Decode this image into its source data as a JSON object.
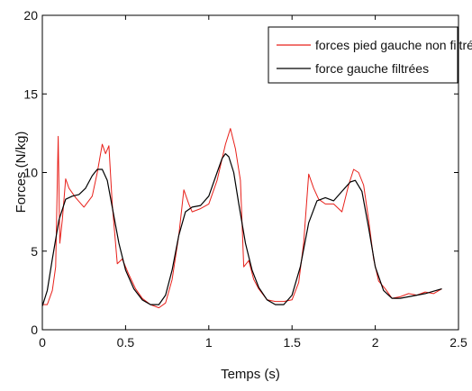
{
  "chart_data": {
    "type": "line",
    "title": "",
    "xlabel": "Temps (s)",
    "ylabel": "Forces (N/kg)",
    "xlim": [
      0,
      2.5
    ],
    "ylim": [
      0,
      20
    ],
    "xticks": [
      "0",
      "0.5",
      "1",
      "1.5",
      "2",
      "2.5"
    ],
    "yticks": [
      "0",
      "5",
      "10",
      "15",
      "20"
    ],
    "grid": false,
    "legend_position": "top-right",
    "series": [
      {
        "name": "forces pied gauche non filtrées",
        "color": "#e8201a",
        "x": [
          0,
          0.03,
          0.06,
          0.08,
          0.095,
          0.105,
          0.12,
          0.14,
          0.16,
          0.2,
          0.25,
          0.3,
          0.33,
          0.36,
          0.38,
          0.4,
          0.42,
          0.45,
          0.48,
          0.52,
          0.56,
          0.6,
          0.65,
          0.7,
          0.74,
          0.78,
          0.82,
          0.85,
          0.88,
          0.9,
          0.95,
          1.0,
          1.05,
          1.1,
          1.13,
          1.16,
          1.19,
          1.21,
          1.24,
          1.27,
          1.3,
          1.35,
          1.4,
          1.45,
          1.5,
          1.54,
          1.57,
          1.6,
          1.63,
          1.66,
          1.7,
          1.75,
          1.8,
          1.84,
          1.87,
          1.9,
          1.93,
          1.96,
          1.99,
          2.02,
          2.06,
          2.1,
          2.15,
          2.2,
          2.25,
          2.3,
          2.35,
          2.4
        ],
        "y": [
          1.6,
          1.6,
          2.5,
          4.0,
          12.3,
          5.5,
          7.0,
          9.6,
          9.0,
          8.4,
          7.8,
          8.5,
          10.0,
          11.8,
          11.2,
          11.7,
          8.0,
          4.2,
          4.5,
          3.5,
          2.6,
          2.0,
          1.6,
          1.4,
          1.7,
          3.2,
          6.0,
          8.9,
          8.0,
          7.5,
          7.7,
          8.0,
          9.5,
          11.8,
          12.8,
          11.5,
          9.5,
          4.0,
          4.4,
          3.2,
          2.6,
          1.9,
          1.8,
          1.8,
          1.9,
          3.0,
          5.5,
          9.9,
          9.0,
          8.3,
          8.0,
          8.0,
          7.5,
          9.2,
          10.2,
          10.0,
          9.2,
          7.0,
          4.5,
          3.1,
          2.6,
          2.0,
          2.1,
          2.3,
          2.2,
          2.4,
          2.3,
          2.6
        ]
      },
      {
        "name": "force gauche filtrées",
        "color": "#000000",
        "x": [
          0,
          0.03,
          0.06,
          0.1,
          0.14,
          0.18,
          0.22,
          0.26,
          0.3,
          0.33,
          0.36,
          0.39,
          0.42,
          0.46,
          0.5,
          0.55,
          0.6,
          0.65,
          0.7,
          0.74,
          0.78,
          0.82,
          0.86,
          0.9,
          0.95,
          1.0,
          1.05,
          1.08,
          1.1,
          1.12,
          1.15,
          1.18,
          1.22,
          1.26,
          1.3,
          1.35,
          1.4,
          1.45,
          1.5,
          1.55,
          1.6,
          1.65,
          1.7,
          1.75,
          1.8,
          1.85,
          1.88,
          1.92,
          1.96,
          2.0,
          2.05,
          2.1,
          2.15,
          2.2,
          2.3,
          2.4
        ],
        "y": [
          1.5,
          2.5,
          4.5,
          7.0,
          8.3,
          8.5,
          8.6,
          9.0,
          9.8,
          10.2,
          10.2,
          9.5,
          7.8,
          5.5,
          3.8,
          2.6,
          1.9,
          1.6,
          1.6,
          2.2,
          3.8,
          6.0,
          7.5,
          7.8,
          7.9,
          8.5,
          10.0,
          10.9,
          11.2,
          11.0,
          10.0,
          8.0,
          5.5,
          3.8,
          2.7,
          1.9,
          1.6,
          1.6,
          2.2,
          4.0,
          6.8,
          8.2,
          8.4,
          8.2,
          8.8,
          9.4,
          9.5,
          8.8,
          6.5,
          4.0,
          2.5,
          2.0,
          2.0,
          2.1,
          2.3,
          2.6
        ]
      }
    ]
  }
}
